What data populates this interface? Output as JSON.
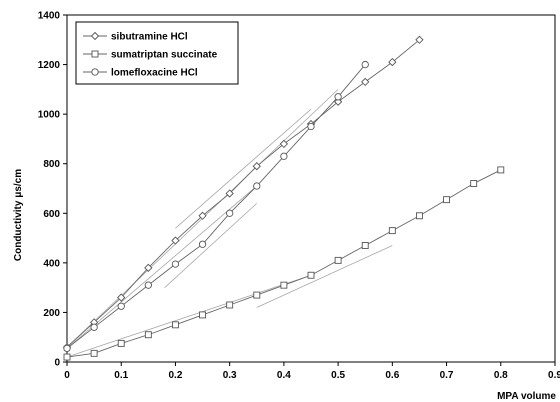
{
  "chart_data": {
    "type": "line",
    "title": "",
    "xlabel": "MPA volume",
    "ylabel": "Conductivity μs/cm",
    "xlim": [
      0,
      0.9
    ],
    "ylim": [
      0,
      1400
    ],
    "x_ticks": [
      "0",
      "0.1",
      "0.2",
      "0.3",
      "0.4",
      "0.5",
      "0.6",
      "0.7",
      "0.8",
      "0.9"
    ],
    "y_ticks": [
      "0",
      "200",
      "400",
      "600",
      "800",
      "1000",
      "1200",
      "1400"
    ],
    "grid": false,
    "legend_position": "top-left",
    "series": [
      {
        "name": "sibutramine HCl",
        "marker": "diamond",
        "x": [
          0,
          0.05,
          0.1,
          0.15,
          0.2,
          0.25,
          0.3,
          0.35,
          0.4,
          0.45,
          0.5,
          0.55,
          0.6,
          0.65
        ],
        "y": [
          60,
          160,
          260,
          380,
          490,
          590,
          680,
          790,
          880,
          960,
          1050,
          1130,
          1210,
          1300
        ]
      },
      {
        "name": "sumatriptan succinate",
        "marker": "square",
        "x": [
          0,
          0.05,
          0.1,
          0.15,
          0.2,
          0.25,
          0.3,
          0.35,
          0.4,
          0.45,
          0.5,
          0.55,
          0.6,
          0.65,
          0.7,
          0.75,
          0.8
        ],
        "y": [
          20,
          35,
          75,
          110,
          150,
          190,
          230,
          270,
          310,
          350,
          410,
          470,
          530,
          590,
          655,
          720,
          775
        ]
      },
      {
        "name": "lomefloxacine HCl",
        "marker": "circle",
        "x": [
          0,
          0.05,
          0.1,
          0.15,
          0.2,
          0.25,
          0.3,
          0.35,
          0.4,
          0.45,
          0.5,
          0.55
        ],
        "y": [
          55,
          140,
          225,
          310,
          395,
          475,
          600,
          710,
          830,
          950,
          1070,
          1200
        ]
      }
    ],
    "trend_lines": [
      {
        "x": [
          0,
          0.5
        ],
        "y": [
          60,
          1100
        ]
      },
      {
        "x": [
          0.2,
          0.45
        ],
        "y": [
          540,
          1020
        ]
      },
      {
        "x": [
          0,
          0.45
        ],
        "y": [
          20,
          350
        ]
      },
      {
        "x": [
          0.35,
          0.6
        ],
        "y": [
          220,
          470
        ]
      },
      {
        "x": [
          0,
          0.35
        ],
        "y": [
          55,
          710
        ]
      },
      {
        "x": [
          0.18,
          0.35
        ],
        "y": [
          300,
          640
        ]
      }
    ]
  }
}
